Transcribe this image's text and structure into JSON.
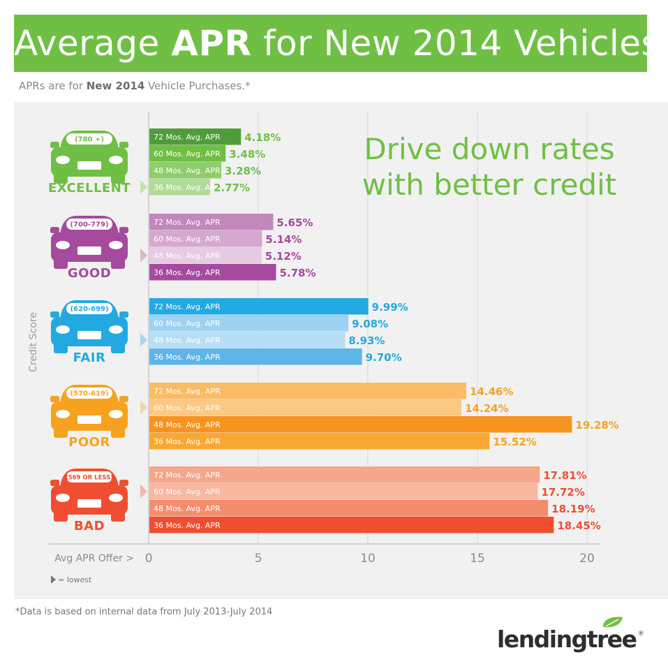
{
  "header": {
    "title_pre": "Average ",
    "title_bold": "APR",
    "title_post": " for New 2014 Vehicles",
    "banner_color": "#6fbf44"
  },
  "subtitle": {
    "pre": "APRs are for ",
    "bold": "New 2014",
    "post": " Vehicle Purchases.*"
  },
  "footnote": "*Data is based on internal data from July 2013-July 2014",
  "logo": {
    "text": "lendingtree",
    "reg": "®"
  },
  "chart_data": {
    "type": "bar",
    "orientation": "horizontal",
    "title": "Average APR for New 2014 Vehicles",
    "tagline": [
      "Drive down rates",
      "with better credit"
    ],
    "xlabel": "Avg APR Offer >",
    "ylabel": "Credit Score",
    "xlim": [
      0,
      20
    ],
    "xticks": [
      0,
      5,
      10,
      15,
      20
    ],
    "grid": true,
    "legend": {
      "marker": "▶",
      "label": "= lowest",
      "placement": "bottom-left"
    },
    "categories": [
      "72 Mos. Avg. APR",
      "60 Mos. Avg. APR",
      "48 Mos. Avg. APR",
      "36 Mos. Avg. APR"
    ],
    "groups": [
      {
        "name": "EXCELLENT",
        "range": "(780 +)",
        "color": "#6fbf44",
        "values": [
          4.18,
          3.48,
          3.28,
          2.77
        ],
        "value_labels": [
          "4.18%",
          "3.48%",
          "3.28%",
          "2.77%"
        ],
        "bar_colors": [
          "#4f9d3a",
          "#6fbf44",
          "#8fcd6a",
          "#b1dc97"
        ],
        "lowest_index": 3
      },
      {
        "name": "GOOD",
        "range": "(700-779)",
        "color": "#a54a9c",
        "values": [
          5.65,
          5.14,
          5.12,
          5.78
        ],
        "value_labels": [
          "5.65%",
          "5.14%",
          "5.12%",
          "5.78%"
        ],
        "bar_colors": [
          "#c287bc",
          "#d4a8cf",
          "#e5cce2",
          "#a54a9c"
        ],
        "lowest_index": 2
      },
      {
        "name": "FAIR",
        "range": "(620-699)",
        "color": "#23a9e1",
        "values": [
          9.99,
          9.08,
          8.93,
          9.7
        ],
        "value_labels": [
          "9.99%",
          "9.08%",
          "8.93%",
          "9.70%"
        ],
        "bar_colors": [
          "#23a9e1",
          "#9ed2f2",
          "#b7def5",
          "#5db5e8"
        ],
        "lowest_index": 2
      },
      {
        "name": "POOR",
        "range": "(570-619)",
        "color": "#f7a21f",
        "values": [
          14.46,
          14.24,
          19.28,
          15.52
        ],
        "value_labels": [
          "14.46%",
          "14.24%",
          "19.28%",
          "15.52%"
        ],
        "bar_colors": [
          "#fbbc66",
          "#fcc982",
          "#f7941f",
          "#f8a833"
        ],
        "lowest_index": 1
      },
      {
        "name": "BAD",
        "range": "(569 OR LESS)",
        "color": "#f04e31",
        "values": [
          17.81,
          17.72,
          18.19,
          18.45
        ],
        "value_labels": [
          "17.81%",
          "17.72%",
          "18.19%",
          "18.45%"
        ],
        "bar_colors": [
          "#f6a68a",
          "#f8b79f",
          "#f48d6d",
          "#f04e31"
        ],
        "lowest_index": 1
      }
    ]
  }
}
